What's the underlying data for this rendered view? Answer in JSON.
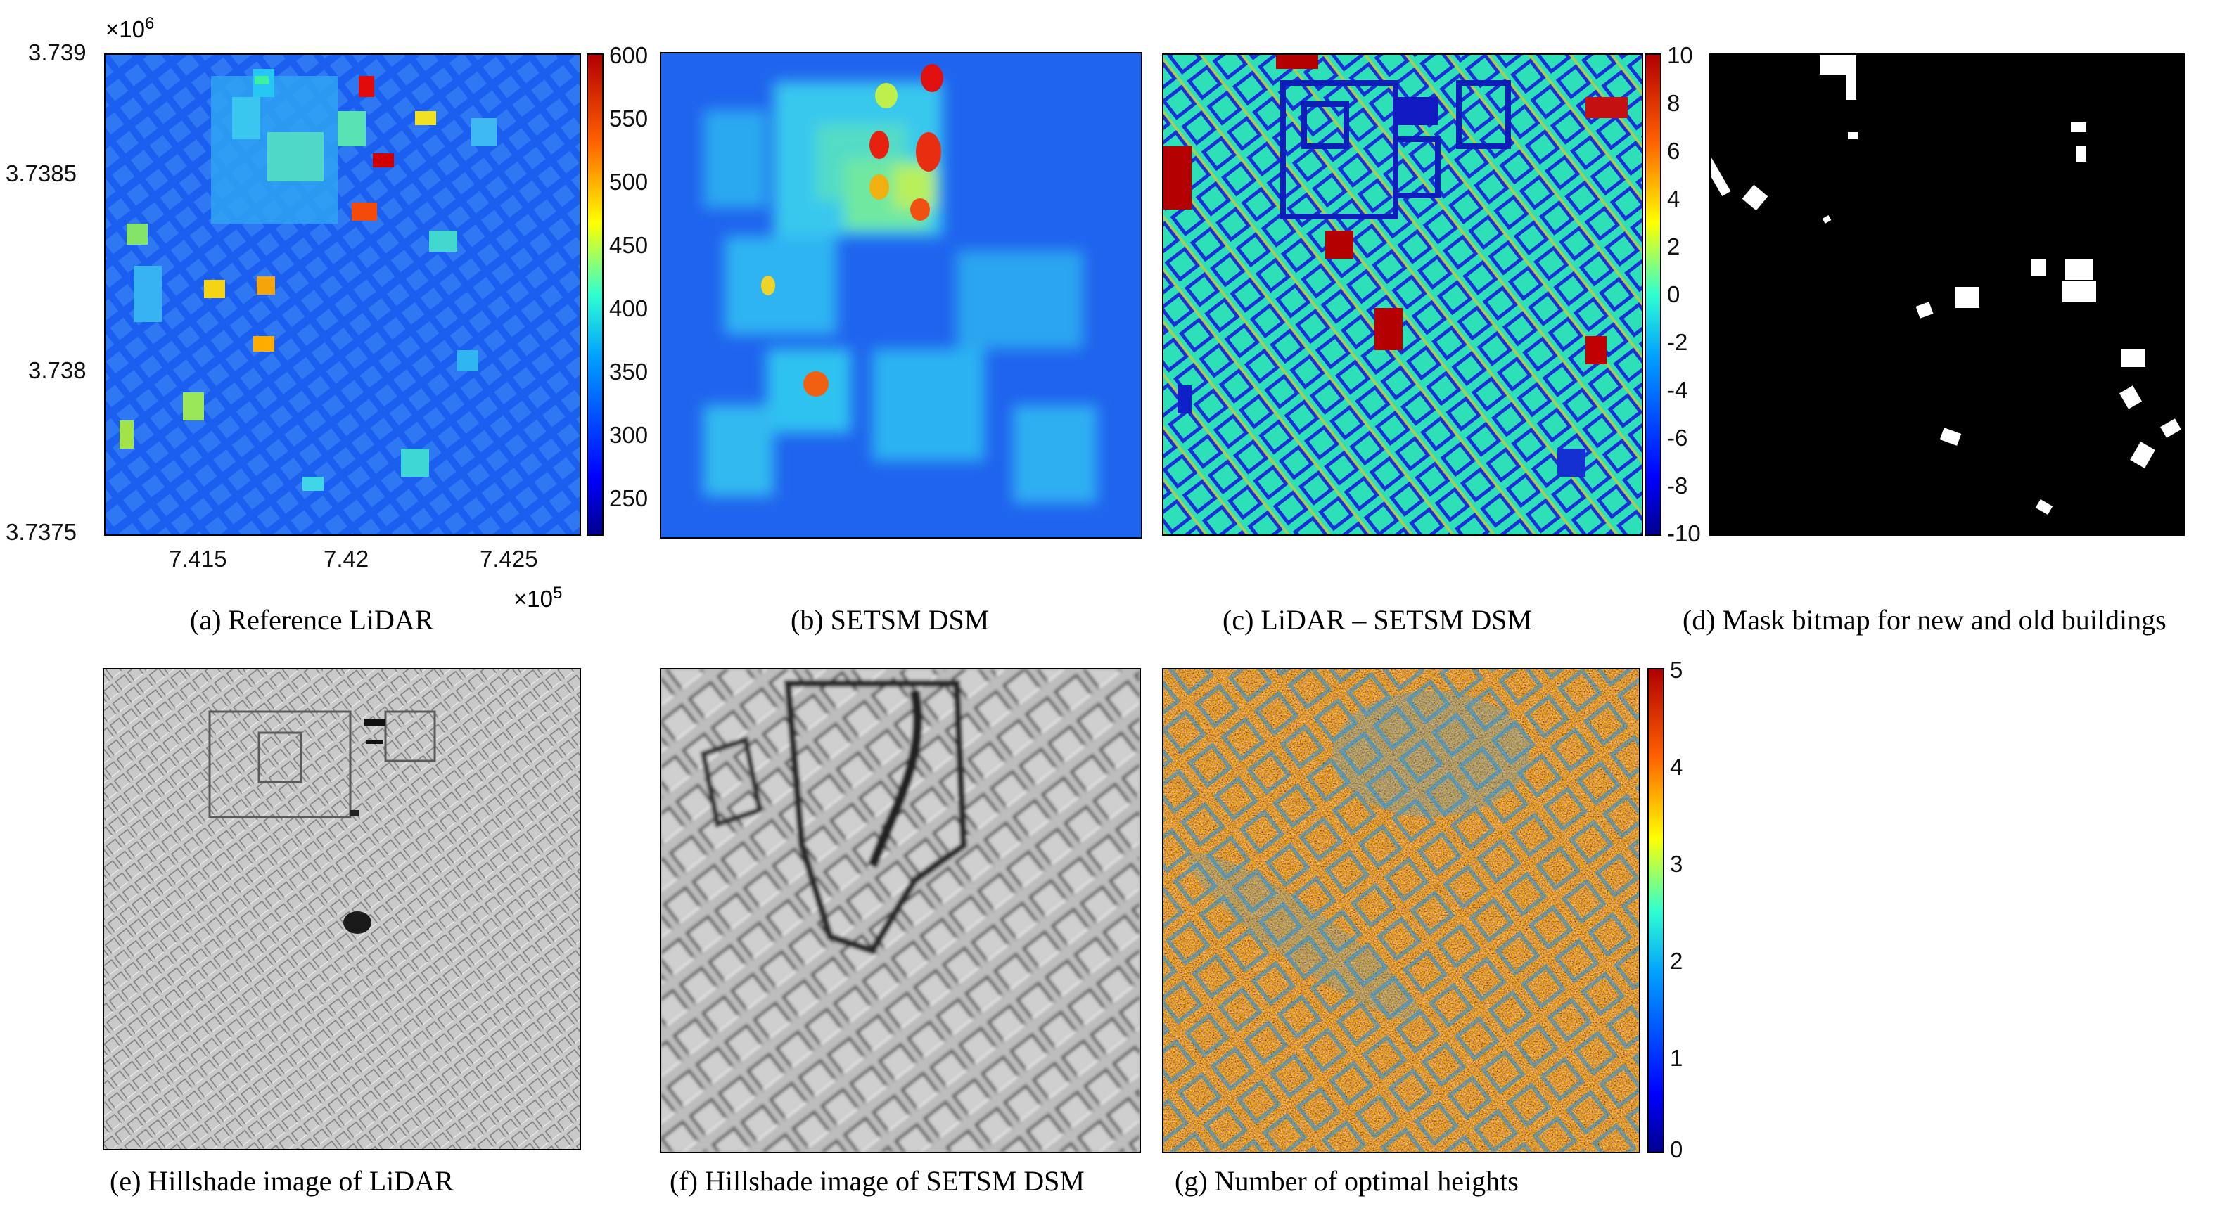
{
  "figure": {
    "panels": [
      {
        "id": "a",
        "caption": "(a) Reference LiDAR"
      },
      {
        "id": "b",
        "caption": "(b) SETSM DSM"
      },
      {
        "id": "c",
        "caption": "(c) LiDAR – SETSM DSM"
      },
      {
        "id": "d",
        "caption": "(d) Mask bitmap for new and old buildings"
      },
      {
        "id": "e",
        "caption": "(e) Hillshade image of LiDAR"
      },
      {
        "id": "f",
        "caption": "(f) Hillshade image of SETSM DSM"
      },
      {
        "id": "g",
        "caption": "(g) Number of optimal heights"
      }
    ],
    "axes_a": {
      "y_ticks": [
        "3.739",
        "3.7385",
        "3.738",
        "3.7375"
      ],
      "y_mult_base": "×10",
      "y_mult_exp": "6",
      "x_ticks": [
        "7.415",
        "7.42",
        "7.425"
      ],
      "x_mult_base": "×10",
      "x_mult_exp": "5"
    },
    "colorbars": {
      "a": {
        "ticks": [
          "600",
          "550",
          "500",
          "450",
          "400",
          "350",
          "300",
          "250"
        ],
        "min": 220,
        "max": 610,
        "colormap": "jet"
      },
      "c": {
        "ticks": [
          "10",
          "8",
          "6",
          "4",
          "2",
          "0",
          "-2",
          "-4",
          "-6",
          "-8",
          "-10"
        ],
        "min": -10,
        "max": 10,
        "colormap": "jet"
      },
      "g": {
        "ticks": [
          "5",
          "4",
          "3",
          "2",
          "1",
          "0"
        ],
        "min": 0,
        "max": 5,
        "colormap": "jet"
      }
    }
  }
}
